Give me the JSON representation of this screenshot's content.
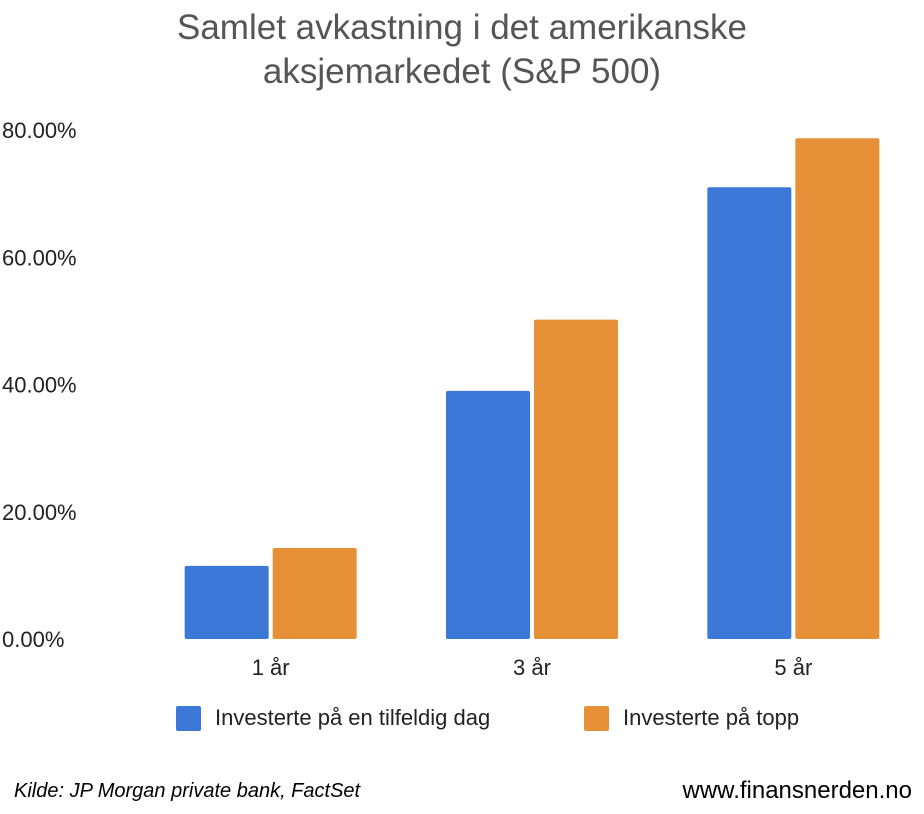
{
  "chart_data": {
    "type": "bar",
    "title_lines": [
      "Samlet avkastning i det amerikanske",
      "aksjemarkedet (S&P 500)"
    ],
    "categories": [
      "1 år",
      "3 år",
      "5 år"
    ],
    "series": [
      {
        "name": "Investerte på en tilfeldig dag",
        "color": "#3c78d8",
        "values": [
          11.5,
          39.0,
          71.0
        ]
      },
      {
        "name": "Investerte på topp",
        "color": "#e69138",
        "values": [
          14.3,
          50.2,
          78.7
        ]
      }
    ],
    "y_ticks": [
      "80.00%",
      "60.00%",
      "40.00%",
      "20.00%",
      "0.00%"
    ],
    "ylim": [
      0,
      80
    ],
    "grid": false,
    "legend_position": "bottom"
  },
  "footer": {
    "source": "Kilde: JP Morgan private bank, FactSet",
    "website": "www.finansnerden.no"
  }
}
